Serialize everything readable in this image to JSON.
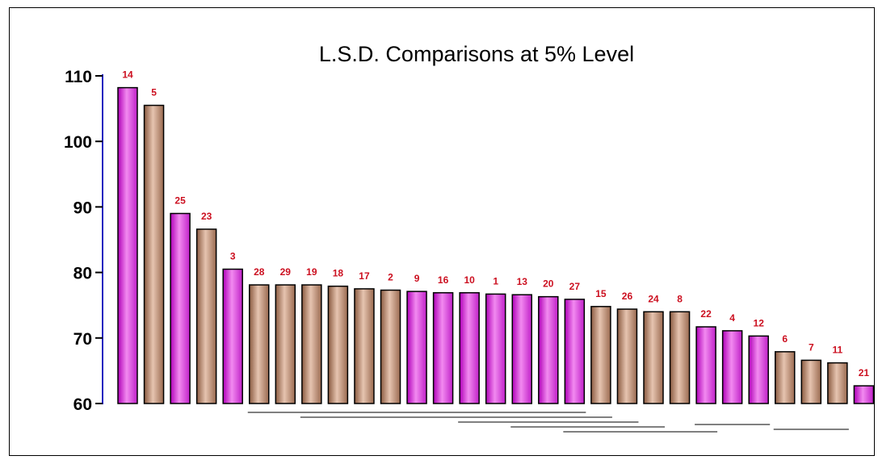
{
  "chart_data": {
    "type": "bar",
    "title": "L.S.D. Comparisons at 5% Level",
    "xlabel": "",
    "ylabel": "",
    "ylim": [
      60,
      110
    ],
    "yticks": [
      60,
      70,
      80,
      90,
      100,
      110
    ],
    "categories": [
      "14",
      "5",
      "25",
      "23",
      "3",
      "28",
      "29",
      "19",
      "18",
      "17",
      "2",
      "9",
      "16",
      "10",
      "1",
      "13",
      "20",
      "27",
      "15",
      "26",
      "24",
      "8",
      "22",
      "4",
      "12",
      "6",
      "7",
      "11",
      "21"
    ],
    "values": [
      108.2,
      105.5,
      89.0,
      86.6,
      80.5,
      78.1,
      78.1,
      78.1,
      77.9,
      77.5,
      77.3,
      77.1,
      76.9,
      76.9,
      76.7,
      76.6,
      76.3,
      75.9,
      74.8,
      74.4,
      74.0,
      74.0,
      71.7,
      71.1,
      70.3,
      67.9,
      66.6,
      66.2,
      62.7
    ],
    "bar_styles": [
      "magenta",
      "tan",
      "magenta",
      "tan",
      "magenta",
      "tan",
      "tan",
      "tan",
      "tan",
      "tan",
      "tan",
      "magenta",
      "magenta",
      "magenta",
      "magenta",
      "magenta",
      "magenta",
      "magenta",
      "tan",
      "tan",
      "tan",
      "tan",
      "magenta",
      "magenta",
      "magenta",
      "tan",
      "tan",
      "tan",
      "magenta"
    ],
    "grid": false,
    "lsd_groups": [
      {
        "from": 5,
        "to": 17
      },
      {
        "from": 7,
        "to": 18
      },
      {
        "from": 13,
        "to": 19
      },
      {
        "from": 15,
        "to": 20
      },
      {
        "from": 17,
        "to": 22
      },
      {
        "from": 22,
        "to": 24
      },
      {
        "from": 25,
        "to": 27
      }
    ],
    "colors": {
      "magenta": "#e040e0",
      "tan": "#c4957a",
      "axis": "#2020c0",
      "label": "#cc1020"
    }
  }
}
